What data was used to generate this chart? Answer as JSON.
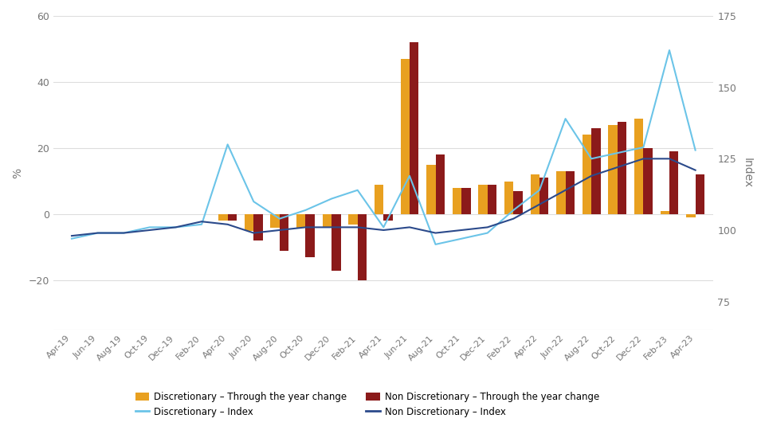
{
  "labels": [
    "Apr-19",
    "Jun-19",
    "Aug-19",
    "Oct-19",
    "Dec-19",
    "Feb-20",
    "Apr-20",
    "Jun-20",
    "Aug-20",
    "Oct-20",
    "Dec-20",
    "Feb-21",
    "Apr-21",
    "Jun-21",
    "Aug-21",
    "Oct-21",
    "Dec-21",
    "Feb-22",
    "Apr-22",
    "Jun-22",
    "Aug-22",
    "Oct-22",
    "Dec-22",
    "Feb-23",
    "Apr-23"
  ],
  "disc_bar": [
    null,
    null,
    null,
    null,
    null,
    null,
    -2,
    -5,
    -4,
    -4,
    -4,
    -3,
    9,
    47,
    15,
    8,
    9,
    10,
    12,
    13,
    24,
    27,
    29,
    1,
    -1
  ],
  "nondisc_bar": [
    null,
    null,
    null,
    null,
    null,
    null,
    -2,
    -8,
    -11,
    -13,
    -17,
    -20,
    -2,
    52,
    18,
    8,
    9,
    7,
    11,
    13,
    26,
    28,
    20,
    19,
    12
  ],
  "disc_index": [
    97,
    99,
    99,
    101,
    101,
    102,
    130,
    110,
    104,
    107,
    111,
    114,
    101,
    119,
    95,
    97,
    99,
    107,
    114,
    139,
    125,
    127,
    129,
    163,
    128
  ],
  "nondisc_index": [
    98,
    99,
    99,
    100,
    101,
    103,
    102,
    99,
    100,
    101,
    101,
    101,
    100,
    101,
    99,
    100,
    101,
    104,
    109,
    114,
    119,
    122,
    125,
    125,
    121
  ],
  "disc_bar_color": "#E8A020",
  "nondisc_bar_color": "#8B1A1A",
  "disc_index_color": "#6BC4E8",
  "nondisc_index_color": "#2B4A8B",
  "ylabel_left": "%",
  "ylabel_right": "Index",
  "ylim_left": [
    -35,
    60
  ],
  "ylim_right": [
    65,
    175
  ],
  "yticks_left": [
    -20,
    0,
    20,
    40,
    60
  ],
  "yticks_right": [
    75,
    100,
    125,
    150,
    175
  ],
  "background_color": "#FFFFFF",
  "legend_items": [
    {
      "label": "Discretionary – Through the year change",
      "color": "#E8A020",
      "type": "bar"
    },
    {
      "label": "Non Discretionary – Through the year change",
      "color": "#8B1A1A",
      "type": "bar"
    },
    {
      "label": "Discretionary – Index",
      "color": "#6BC4E8",
      "type": "line"
    },
    {
      "label": "Non Discretionary – Index",
      "color": "#2B4A8B",
      "type": "line"
    }
  ]
}
